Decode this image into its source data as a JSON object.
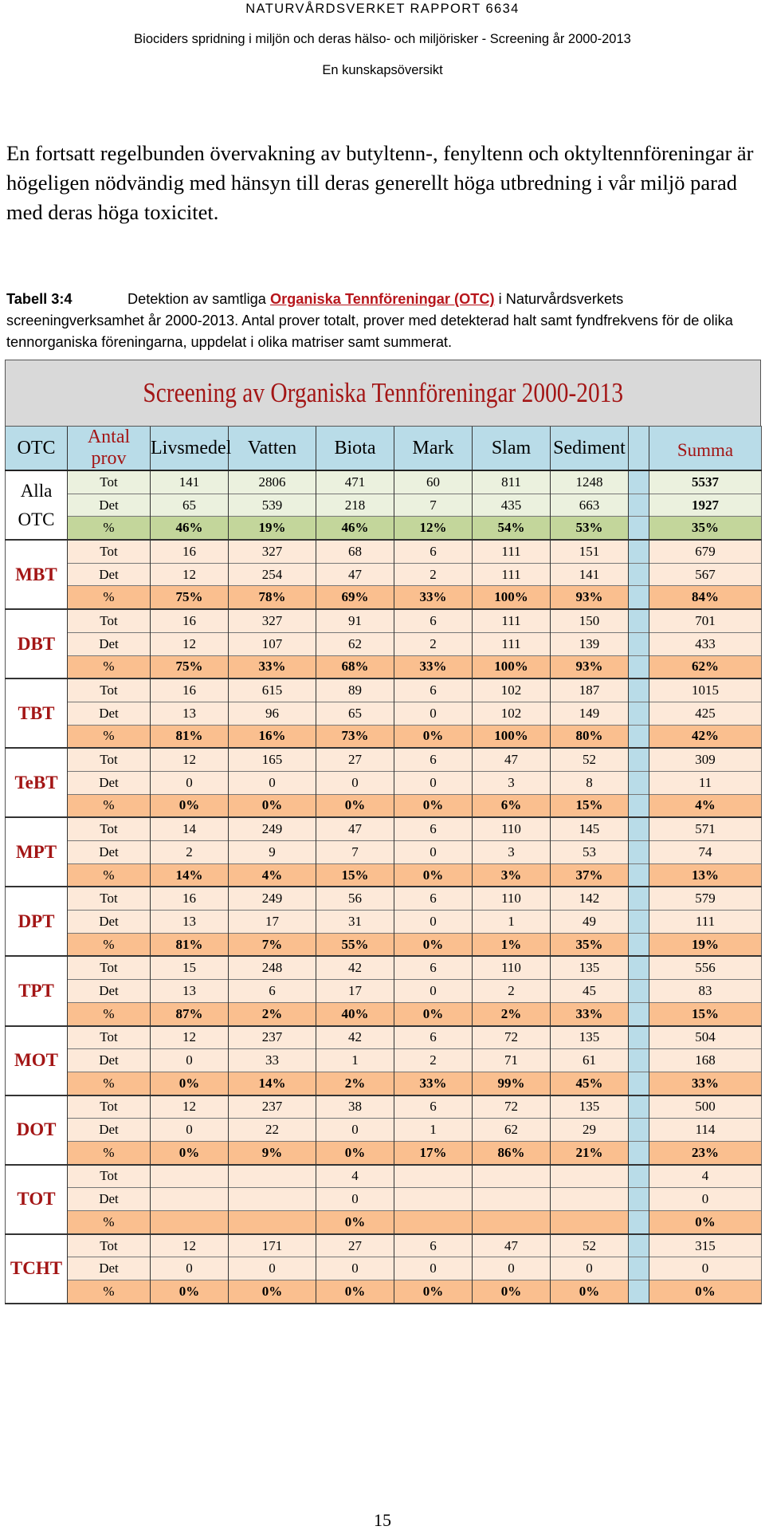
{
  "header": {
    "line1": "NATURVÅRDSVERKET RAPPORT 6634",
    "line2": "Biociders spridning i miljön och deras hälso- och miljörisker - Screening år 2000-2013",
    "line3": "En kunskapsöversikt"
  },
  "intro": "En fortsatt regelbunden övervakning av butyltenn-, fenyltenn och oktyltennföreningar är högeligen nödvändig med hänsyn till deras generellt höga utbredning i vår miljö parad med deras höga toxicitet.",
  "caption": {
    "label": "Tabell 3:4",
    "text_before": "Detektion av samtliga",
    "link": "Organiska Tennföreningar (OTC)",
    "text_after": "i Naturvårdsverkets screeningverksamhet år 2000-2013. Antal prover totalt, prover med detekterad halt samt fyndfrekvens för de olika tennorganiska föreningarna, uppdelat i olika matriser samt summerat."
  },
  "table": {
    "title": "Screening av Organiska Tennföreningar 2000-2013",
    "headers": {
      "otc": "OTC",
      "antal": "Antal prov",
      "matrices": [
        "Livsmedel",
        "Vatten",
        "Biota",
        "Mark",
        "Slam",
        "Sediment"
      ],
      "summa": "Summa"
    },
    "groups": [
      {
        "name": "Alla OTC",
        "rows": [
          {
            "label": "Tot",
            "values": [
              "141",
              "2806",
              "471",
              "60",
              "811",
              "1248"
            ],
            "sum": "5537"
          },
          {
            "label": "Det",
            "values": [
              "65",
              "539",
              "218",
              "7",
              "435",
              "663"
            ],
            "sum": "1927"
          },
          {
            "label": "%",
            "values": [
              "46%",
              "19%",
              "46%",
              "12%",
              "54%",
              "53%"
            ],
            "sum": "35%"
          }
        ]
      },
      {
        "name": "MBT",
        "rows": [
          {
            "label": "Tot",
            "values": [
              "16",
              "327",
              "68",
              "6",
              "111",
              "151"
            ],
            "sum": "679"
          },
          {
            "label": "Det",
            "values": [
              "12",
              "254",
              "47",
              "2",
              "111",
              "141"
            ],
            "sum": "567"
          },
          {
            "label": "%",
            "values": [
              "75%",
              "78%",
              "69%",
              "33%",
              "100%",
              "93%"
            ],
            "sum": "84%"
          }
        ]
      },
      {
        "name": "DBT",
        "rows": [
          {
            "label": "Tot",
            "values": [
              "16",
              "327",
              "91",
              "6",
              "111",
              "150"
            ],
            "sum": "701"
          },
          {
            "label": "Det",
            "values": [
              "12",
              "107",
              "62",
              "2",
              "111",
              "139"
            ],
            "sum": "433"
          },
          {
            "label": "%",
            "values": [
              "75%",
              "33%",
              "68%",
              "33%",
              "100%",
              "93%"
            ],
            "sum": "62%"
          }
        ]
      },
      {
        "name": "TBT",
        "rows": [
          {
            "label": "Tot",
            "values": [
              "16",
              "615",
              "89",
              "6",
              "102",
              "187"
            ],
            "sum": "1015"
          },
          {
            "label": "Det",
            "values": [
              "13",
              "96",
              "65",
              "0",
              "102",
              "149"
            ],
            "sum": "425"
          },
          {
            "label": "%",
            "values": [
              "81%",
              "16%",
              "73%",
              "0%",
              "100%",
              "80%"
            ],
            "sum": "42%"
          }
        ]
      },
      {
        "name": "TeBT",
        "rows": [
          {
            "label": "Tot",
            "values": [
              "12",
              "165",
              "27",
              "6",
              "47",
              "52"
            ],
            "sum": "309"
          },
          {
            "label": "Det",
            "values": [
              "0",
              "0",
              "0",
              "0",
              "3",
              "8"
            ],
            "sum": "11"
          },
          {
            "label": "%",
            "values": [
              "0%",
              "0%",
              "0%",
              "0%",
              "6%",
              "15%"
            ],
            "sum": "4%"
          }
        ]
      },
      {
        "name": "MPT",
        "rows": [
          {
            "label": "Tot",
            "values": [
              "14",
              "249",
              "47",
              "6",
              "110",
              "145"
            ],
            "sum": "571"
          },
          {
            "label": "Det",
            "values": [
              "2",
              "9",
              "7",
              "0",
              "3",
              "53"
            ],
            "sum": "74"
          },
          {
            "label": "%",
            "values": [
              "14%",
              "4%",
              "15%",
              "0%",
              "3%",
              "37%"
            ],
            "sum": "13%"
          }
        ]
      },
      {
        "name": "DPT",
        "rows": [
          {
            "label": "Tot",
            "values": [
              "16",
              "249",
              "56",
              "6",
              "110",
              "142"
            ],
            "sum": "579"
          },
          {
            "label": "Det",
            "values": [
              "13",
              "17",
              "31",
              "0",
              "1",
              "49"
            ],
            "sum": "111"
          },
          {
            "label": "%",
            "values": [
              "81%",
              "7%",
              "55%",
              "0%",
              "1%",
              "35%"
            ],
            "sum": "19%"
          }
        ]
      },
      {
        "name": "TPT",
        "rows": [
          {
            "label": "Tot",
            "values": [
              "15",
              "248",
              "42",
              "6",
              "110",
              "135"
            ],
            "sum": "556"
          },
          {
            "label": "Det",
            "values": [
              "13",
              "6",
              "17",
              "0",
              "2",
              "45"
            ],
            "sum": "83"
          },
          {
            "label": "%",
            "values": [
              "87%",
              "2%",
              "40%",
              "0%",
              "2%",
              "33%"
            ],
            "sum": "15%"
          }
        ]
      },
      {
        "name": "MOT",
        "rows": [
          {
            "label": "Tot",
            "values": [
              "12",
              "237",
              "42",
              "6",
              "72",
              "135"
            ],
            "sum": "504"
          },
          {
            "label": "Det",
            "values": [
              "0",
              "33",
              "1",
              "2",
              "71",
              "61"
            ],
            "sum": "168"
          },
          {
            "label": "%",
            "values": [
              "0%",
              "14%",
              "2%",
              "33%",
              "99%",
              "45%"
            ],
            "sum": "33%"
          }
        ]
      },
      {
        "name": "DOT",
        "rows": [
          {
            "label": "Tot",
            "values": [
              "12",
              "237",
              "38",
              "6",
              "72",
              "135"
            ],
            "sum": "500"
          },
          {
            "label": "Det",
            "values": [
              "0",
              "22",
              "0",
              "1",
              "62",
              "29"
            ],
            "sum": "114"
          },
          {
            "label": "%",
            "values": [
              "0%",
              "9%",
              "0%",
              "17%",
              "86%",
              "21%"
            ],
            "sum": "23%"
          }
        ]
      },
      {
        "name": "TOT",
        "rows": [
          {
            "label": "Tot",
            "values": [
              "",
              "",
              "4",
              "",
              "",
              ""
            ],
            "sum": "4"
          },
          {
            "label": "Det",
            "values": [
              "",
              "",
              "0",
              "",
              "",
              ""
            ],
            "sum": "0"
          },
          {
            "label": "%",
            "values": [
              "",
              "",
              "0%",
              "",
              "",
              ""
            ],
            "sum": "0%"
          }
        ]
      },
      {
        "name": "TCHT",
        "rows": [
          {
            "label": "Tot",
            "values": [
              "12",
              "171",
              "27",
              "6",
              "47",
              "52"
            ],
            "sum": "315"
          },
          {
            "label": "Det",
            "values": [
              "0",
              "0",
              "0",
              "0",
              "0",
              "0"
            ],
            "sum": "0"
          },
          {
            "label": "%",
            "values": [
              "0%",
              "0%",
              "0%",
              "0%",
              "0%",
              "0%"
            ],
            "sum": "0%"
          }
        ]
      }
    ]
  },
  "page_number": "15"
}
